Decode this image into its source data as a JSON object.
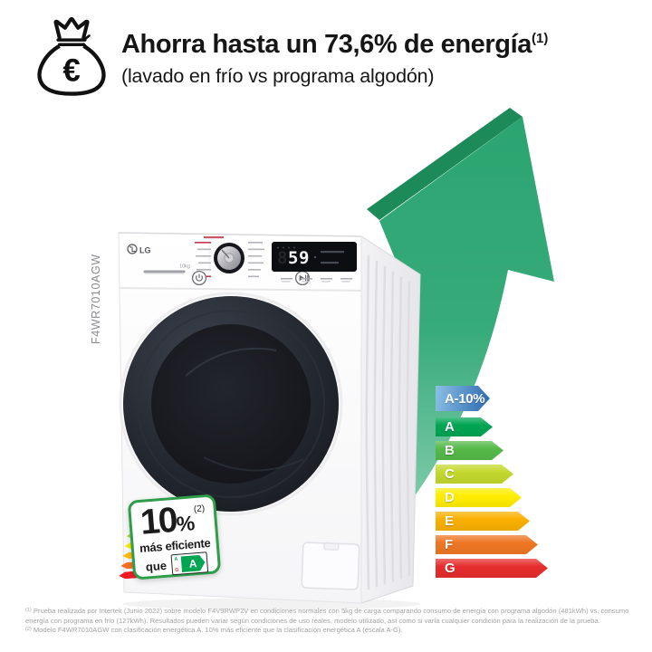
{
  "header": {
    "icon": "money-bag-euro",
    "title": "Ahorra hasta un 73,6% de energía",
    "title_sup": "(1)",
    "subtitle": "(lavado en frío vs programa algodón)"
  },
  "machine": {
    "brand": "LG",
    "model_vertical": "F4WR7010AGW",
    "capacity": "10kg",
    "display": {
      "time": "59",
      "unlit_digit": "8"
    },
    "badge": {
      "value": "10",
      "percent_sign": "%",
      "sup": "(2)",
      "line1": "más eficiente",
      "line2": "que",
      "border_color": "#2f9e49",
      "mini_label": {
        "top_letter": "A",
        "bottom_letter": "G",
        "arrow_letter": "A",
        "arrow_color": "#00a651"
      },
      "arrow_colors": [
        "#00a651",
        "#50b848",
        "#b5d334",
        "#ffe900",
        "#fdb913",
        "#f37021",
        "#ed1c24"
      ]
    }
  },
  "energy_scale": {
    "rows": [
      {
        "label": "A-10%",
        "color_start": "#8cc0e6",
        "color_end": "#2a68b0",
        "width": 60
      },
      {
        "label": "A",
        "color": "#00a553",
        "width": 63
      },
      {
        "label": "B",
        "color": "#55b948",
        "width": 75
      },
      {
        "label": "C",
        "color": "#c3d82d",
        "width": 86
      },
      {
        "label": "D",
        "color": "#ffed00",
        "width": 95
      },
      {
        "label": "E",
        "color": "#f9b000",
        "width": 104
      },
      {
        "label": "F",
        "color": "#ee7623",
        "width": 113
      },
      {
        "label": "G",
        "color": "#e62d2d",
        "width": 124
      }
    ]
  },
  "scene": {
    "arrow_color": "#2ba470",
    "arrow_edge_color": "#1d8a59"
  },
  "footnotes": [
    {
      "marker": "(1)",
      "text": "Prueba realizada por Intertek (Junio 2022) sobre modelo F4V9RWP2V en condiciones normales con 5kg de carga comparando consumo de energía con programa algodón (481kWh) vs. consumo energía con programa en frío (127kWh). Resultados pueden variar según condiciones de uso reales, modelo utilizado, así como si varía cualquier condición para la realización de la prueba."
    },
    {
      "marker": "(2)",
      "text": "Modelo F4WR7010AGW con clasificación energética A. 10% más eficiente que la clasificación energética A (escala A-G)."
    }
  ]
}
